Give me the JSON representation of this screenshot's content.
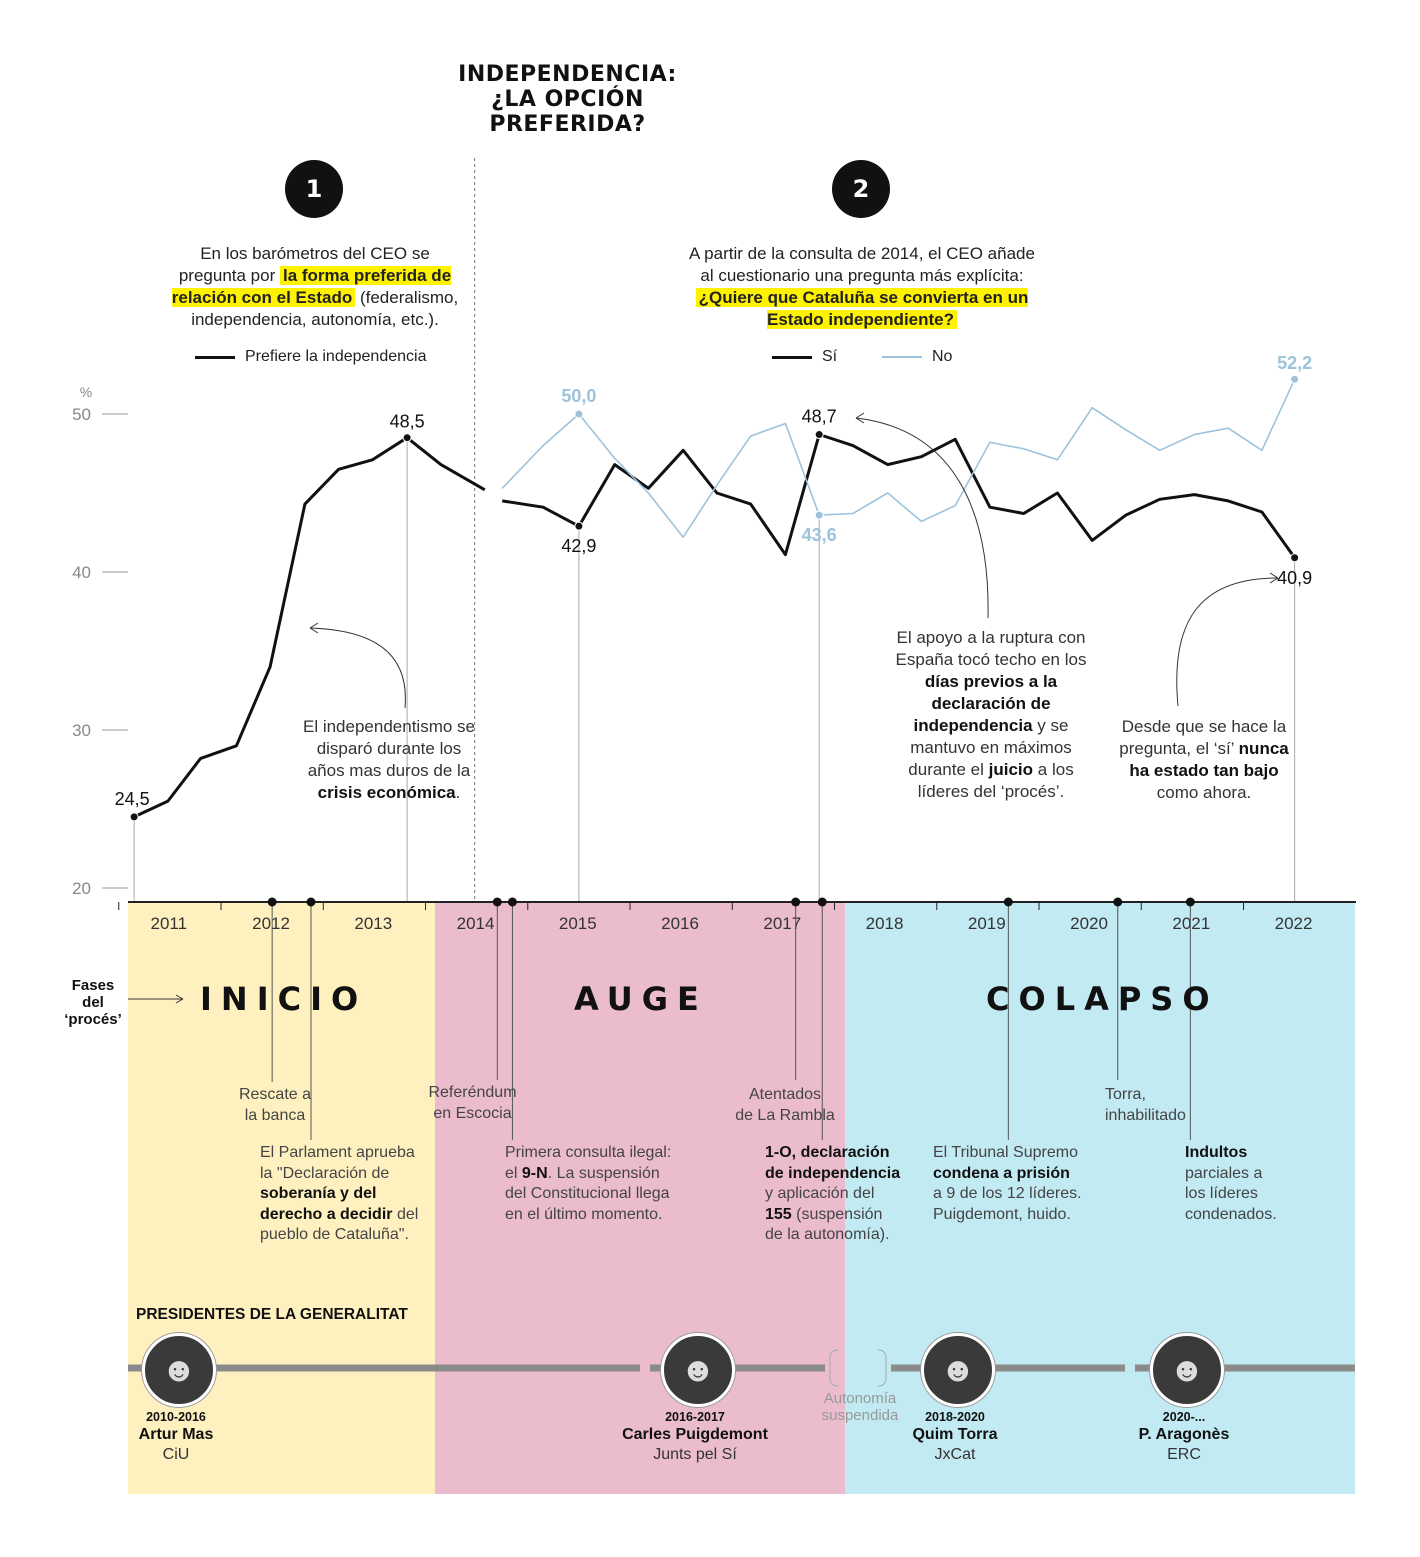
{
  "title_lines": [
    "INDEPENDENCIA:",
    "¿LA OPCIÓN",
    "PREFERIDA?"
  ],
  "colors": {
    "si": "#111111",
    "no": "#9dc3dc",
    "highlight": "#fff200",
    "phase_inicio": "#fff1bf",
    "phase_auge": "#ebbcce",
    "phase_colapso": "#c1eaf3"
  },
  "section1": {
    "badge": "1",
    "text_a": "En los barómetros del CEO se",
    "text_b": "pregunta por",
    "highlight": "la forma preferida de relación con el Estado",
    "text_c": "(federalismo, independencia, autonomía, etc.).",
    "legend": "Prefiere la independencia"
  },
  "section2": {
    "badge": "2",
    "text_a": "A partir de la consulta de 2014, el CEO añade",
    "text_b": "al cuestionario una pregunta más explícita:",
    "highlight": "¿Quiere que Cataluña se convierta en un Estado independiente?",
    "legend_si": "Sí",
    "legend_no": "No"
  },
  "annotations": {
    "crisis_a": "El independentismo se disparó durante los años mas duros de la",
    "crisis_b": "crisis económica",
    "crisis_c": ".",
    "techo_a": "El apoyo a la ruptura con España tocó techo en los",
    "techo_b": "días previos a la declaración de independencia",
    "techo_c": "y se mantuvo en máximos durante el",
    "techo_d": "juicio",
    "techo_e": "a los líderes del ‘procés’.",
    "bajo_a": "Desde que se hace la pregunta, el ‘sí’",
    "bajo_b": "nunca ha estado tan bajo",
    "bajo_c": "como ahora."
  },
  "chart_data": [
    {
      "type": "line",
      "unit": "%",
      "ylim": [
        20,
        50
      ],
      "yticks": [
        20,
        30,
        40,
        50
      ],
      "x_range": [
        2010.6,
        2022.6
      ],
      "series": [
        {
          "name": "Prefiere la independencia",
          "x": [
            2010.65,
            2010.98,
            2011.3,
            2011.65,
            2011.98,
            2012.32,
            2012.65,
            2012.98,
            2013.32,
            2013.65,
            2014.08
          ],
          "y": [
            24.5,
            25.5,
            28.2,
            29.0,
            34.0,
            44.3,
            46.5,
            47.1,
            48.5,
            46.8,
            45.2
          ]
        },
        {
          "name": "Sí",
          "x": [
            2014.25,
            2014.65,
            2015.0,
            2015.35,
            2015.68,
            2016.02,
            2016.35,
            2016.68,
            2017.02,
            2017.35,
            2017.68,
            2018.02,
            2018.35,
            2018.68,
            2019.02,
            2019.35,
            2019.68,
            2020.02,
            2020.35,
            2020.68,
            2021.02,
            2021.35,
            2021.68,
            2022.0
          ],
          "y": [
            44.5,
            44.1,
            42.9,
            46.8,
            45.3,
            47.7,
            45.0,
            44.3,
            41.1,
            48.7,
            48.0,
            46.8,
            47.3,
            48.4,
            44.1,
            43.7,
            45.0,
            42.0,
            43.6,
            44.6,
            44.9,
            44.5,
            43.8,
            40.9
          ]
        },
        {
          "name": "No",
          "x": [
            2014.25,
            2014.65,
            2015.0,
            2015.35,
            2015.68,
            2016.02,
            2016.35,
            2016.68,
            2017.02,
            2017.35,
            2017.68,
            2018.02,
            2018.35,
            2018.68,
            2019.02,
            2019.35,
            2019.68,
            2020.02,
            2020.35,
            2020.68,
            2021.02,
            2021.35,
            2021.68,
            2022.0
          ],
          "y": [
            45.3,
            48.0,
            50.0,
            47.2,
            45.0,
            42.2,
            45.5,
            48.6,
            49.4,
            43.6,
            43.7,
            45.0,
            43.2,
            44.2,
            48.2,
            47.8,
            47.1,
            50.4,
            49.0,
            47.7,
            48.7,
            49.1,
            47.7,
            52.2
          ]
        }
      ],
      "labels": [
        {
          "series": "Prefiere la independencia",
          "x": 2010.65,
          "y": 24.5,
          "text": "24,5"
        },
        {
          "series": "Prefiere la independencia",
          "x": 2013.32,
          "y": 48.5,
          "text": "48,5"
        },
        {
          "series": "Sí",
          "x": 2015.0,
          "y": 42.9,
          "text": "42,9"
        },
        {
          "series": "No",
          "x": 2015.0,
          "y": 50.0,
          "text": "50,0"
        },
        {
          "series": "Sí",
          "x": 2017.35,
          "y": 48.7,
          "text": "48,7"
        },
        {
          "series": "No",
          "x": 2017.35,
          "y": 43.6,
          "text": "43,6"
        },
        {
          "series": "No",
          "x": 2022.0,
          "y": 52.2,
          "text": "52,2"
        },
        {
          "series": "Sí",
          "x": 2022.0,
          "y": 40.9,
          "text": "40,9"
        }
      ],
      "divider_x": 2014.0
    },
    {
      "type": "timeline",
      "years": [
        "2011",
        "2012",
        "2013",
        "2014",
        "2015",
        "2016",
        "2017",
        "2018",
        "2019",
        "2020",
        "2021",
        "2022"
      ],
      "fases_label": [
        "Fases",
        "del",
        "‘procés’"
      ],
      "phases": [
        {
          "name": "INICIO",
          "from": 2010.5,
          "to": 2013.48
        },
        {
          "name": "AUGE",
          "from": 2013.48,
          "to": 2017.45
        },
        {
          "name": "COLAPSO",
          "from": 2017.45,
          "to": 2022.5
        }
      ],
      "events": [
        {
          "x": 2012.0,
          "text": [
            "Rescate a",
            "la banca"
          ]
        },
        {
          "x": 2012.38,
          "text": [
            "El Parlament aprueba",
            "la \"Declaración de",
            "**soberanía y del",
            "**derecho a decidir** del",
            "pueblo de Cataluña\"."
          ]
        },
        {
          "x": 2014.28,
          "text": [
            "Referéndum",
            "en Escocia"
          ]
        },
        {
          "x": 2014.35,
          "text": [
            "Primera consulta ilegal:",
            "el **9-N**. La suspensión",
            "del Constitucional llega",
            "en el último momento."
          ]
        },
        {
          "x": 2017.12,
          "text": [
            "Atentados",
            "de La Rambla"
          ]
        },
        {
          "x": 2017.38,
          "text": [
            "**1-O, declaración",
            "**de independencia",
            "y aplicación del",
            "**155** (suspensión",
            "de la autonomía)."
          ]
        },
        {
          "x": 2019.2,
          "text": [
            "El Tribunal Supremo",
            "**condena a prisión",
            "a 9 de los 12 líderes.",
            "Puigdemont, huido."
          ]
        },
        {
          "x": 2020.27,
          "text": [
            "Torra,",
            "inhabilitado"
          ]
        },
        {
          "x": 2020.98,
          "text": [
            "**Indultos",
            "parciales a",
            "los líderes",
            "condenados."
          ]
        }
      ]
    }
  ],
  "presidents": {
    "heading": "PRESIDENTES DE LA GENERALITAT",
    "suspended": "Autonomía suspendida",
    "items": [
      {
        "years": "2010-2016",
        "name": "Artur Mas",
        "party": "CiU"
      },
      {
        "years": "2016-2017",
        "name": "Carles Puigdemont",
        "party": "Junts pel Sí"
      },
      {
        "years": "2018-2020",
        "name": "Quim Torra",
        "party": "JxCat"
      },
      {
        "years": "2020-...",
        "name": "P. Aragonès",
        "party": "ERC"
      }
    ]
  }
}
